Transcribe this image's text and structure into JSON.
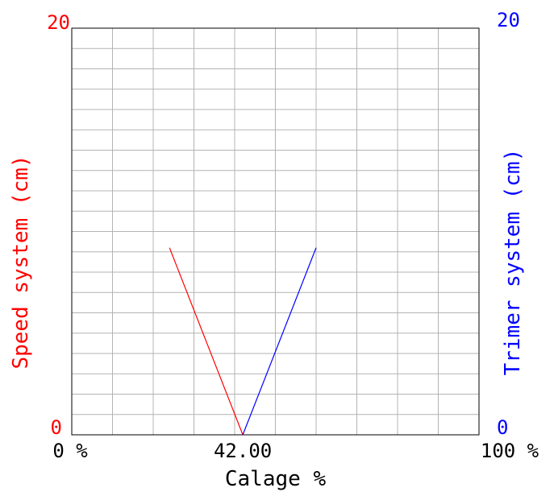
{
  "chart_data": {
    "type": "line",
    "xlabel": "Calage %",
    "ylabel_left": "Speed system (cm)",
    "ylabel_right": "Trimer system (cm)",
    "xlim": [
      0,
      100
    ],
    "ylim_left": [
      0,
      20
    ],
    "ylim_right": [
      0,
      20
    ],
    "x_tick_labels": [
      "0 %",
      "42.00",
      "100 %"
    ],
    "x_tick_values": [
      0,
      42,
      100
    ],
    "y_left_tick_labels": [
      "0",
      "20"
    ],
    "y_right_tick_labels": [
      "0",
      "20"
    ],
    "grid": true,
    "grid_x_divisions": 10,
    "grid_y_divisions": 20,
    "series": [
      {
        "color": "#ff0000",
        "axis": "left",
        "x": [
          24,
          42
        ],
        "y": [
          9.2,
          0
        ]
      },
      {
        "color": "#0000ff",
        "axis": "right",
        "x": [
          42,
          60
        ],
        "y": [
          0,
          9.2
        ]
      }
    ],
    "colors": {
      "left_axis": "#ff0000",
      "right_axis": "#0000ff",
      "frame": "#000000",
      "grid": "#b4b4b4"
    }
  }
}
